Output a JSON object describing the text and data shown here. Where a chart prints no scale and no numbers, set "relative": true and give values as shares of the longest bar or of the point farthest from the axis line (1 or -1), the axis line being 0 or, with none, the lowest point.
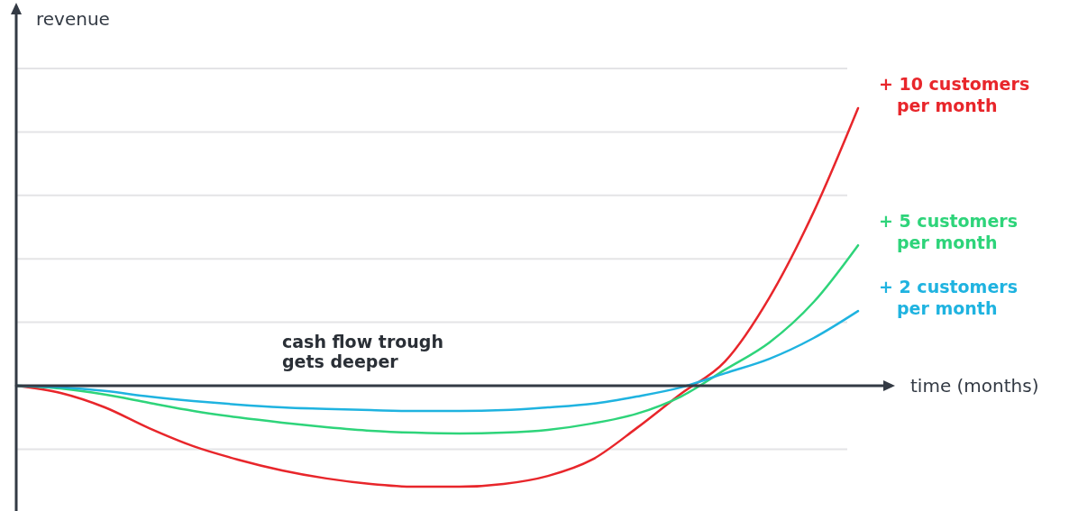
{
  "chart_data": {
    "type": "line",
    "relative": true,
    "xlabel": "time (months)",
    "ylabel": "revenue",
    "annotations": [
      "cash flow trough gets deeper"
    ],
    "grid": true,
    "legend": false,
    "marker": "none",
    "line_style": "solid",
    "categories": [
      null,
      null,
      null,
      null,
      null,
      null,
      null,
      null,
      null,
      null,
      null,
      null,
      null,
      null,
      null,
      null,
      null,
      null,
      null,
      null
    ],
    "series": [
      {
        "name": "+ 10 customers per month",
        "color": "#e8262b",
        "values": [
          0,
          -0.026,
          -0.078,
          -0.153,
          -0.218,
          -0.266,
          -0.305,
          -0.334,
          -0.354,
          -0.364,
          -0.364,
          -0.354,
          -0.325,
          -0.266,
          -0.153,
          -0.029,
          0.088,
          0.318,
          0.627,
          1
        ]
      },
      {
        "name": "+ 5 customers per month",
        "color": "#2ed47a",
        "values": [
          0,
          -0.01,
          -0.032,
          -0.062,
          -0.091,
          -0.114,
          -0.133,
          -0.149,
          -0.162,
          -0.169,
          -0.172,
          -0.169,
          -0.159,
          -0.136,
          -0.101,
          -0.039,
          0.058,
          0.156,
          0.302,
          0.506
        ]
      },
      {
        "name": "+ 2 customers per month",
        "color": "#1fb3e0",
        "values": [
          0,
          -0.006,
          -0.019,
          -0.039,
          -0.055,
          -0.068,
          -0.078,
          -0.084,
          -0.088,
          -0.091,
          -0.091,
          -0.088,
          -0.078,
          -0.065,
          -0.039,
          -0.006,
          0.045,
          0.097,
          0.172,
          0.269
        ]
      }
    ]
  }
}
